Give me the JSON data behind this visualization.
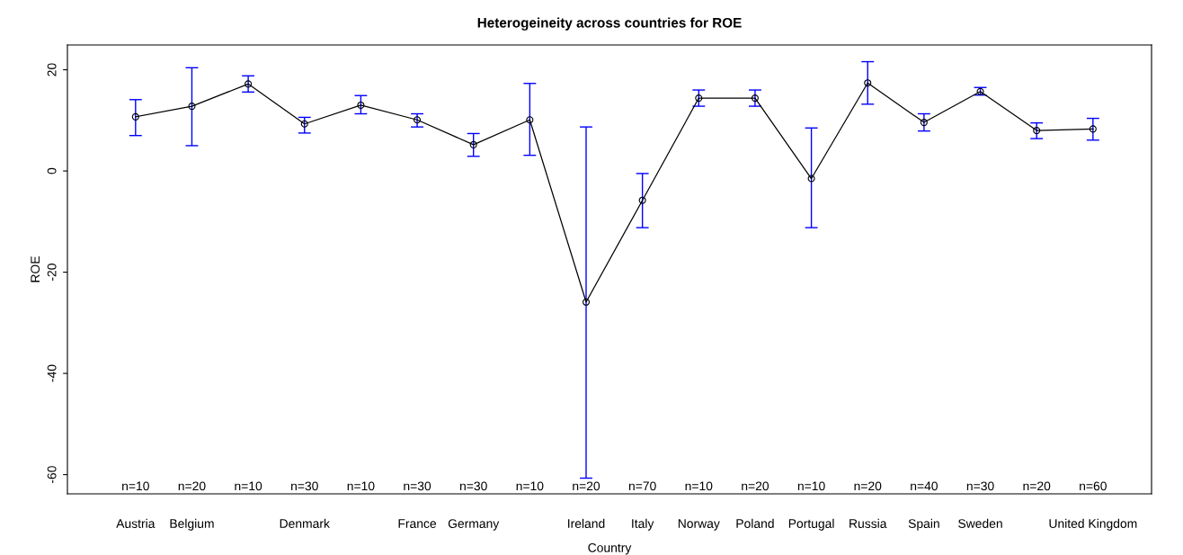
{
  "chart_data": {
    "type": "line",
    "title": "Heterogeineity across countries for ROE",
    "xlabel": "Country",
    "ylabel": "ROE",
    "categories": [
      "Austria",
      "Belgium",
      null,
      "Denmark",
      null,
      "France",
      "Germany",
      null,
      "Ireland",
      "Italy",
      "Norway",
      "Poland",
      "Portugal",
      "Russia",
      "Spain",
      "Sweden",
      null,
      "United Kingdom"
    ],
    "series": [
      {
        "color": "#000000",
        "values": [
          10.7,
          12.8,
          17.2,
          9.3,
          13.0,
          10.1,
          5.2,
          10.1,
          -25.9,
          -5.8,
          14.4,
          14.4,
          -1.5,
          17.4,
          9.6,
          15.7,
          8.0,
          8.3
        ],
        "errors": [
          [
            7.0,
            14.1
          ],
          [
            5.0,
            20.4
          ],
          [
            15.6,
            18.8
          ],
          [
            7.5,
            10.6
          ],
          [
            11.3,
            14.9
          ],
          [
            8.7,
            11.3
          ],
          [
            2.9,
            7.4
          ],
          [
            3.1,
            17.3
          ],
          [
            -60.7,
            8.7
          ],
          [
            -11.2,
            -0.5
          ],
          [
            12.8,
            16.0
          ],
          [
            12.8,
            16.0
          ],
          [
            -11.2,
            8.5
          ],
          [
            13.2,
            21.6
          ],
          [
            7.9,
            11.3
          ],
          [
            15.0,
            16.5
          ],
          [
            6.4,
            9.5
          ],
          [
            6.1,
            10.4
          ]
        ]
      }
    ],
    "annotations": [
      "n=10",
      "n=20",
      "n=10",
      "n=30",
      "n=10",
      "n=30",
      "n=30",
      "n=10",
      "n=20",
      "n=70",
      "n=10",
      "n=20",
      "n=10",
      "n=20",
      "n=40",
      "n=30",
      "n=20",
      "n=60"
    ],
    "ylim": [
      -63.8,
      24.9
    ],
    "yticks": [
      -60,
      -40,
      -20,
      0,
      20
    ],
    "marker": "circle",
    "line_style": "solid",
    "grid": false,
    "legend": false
  }
}
